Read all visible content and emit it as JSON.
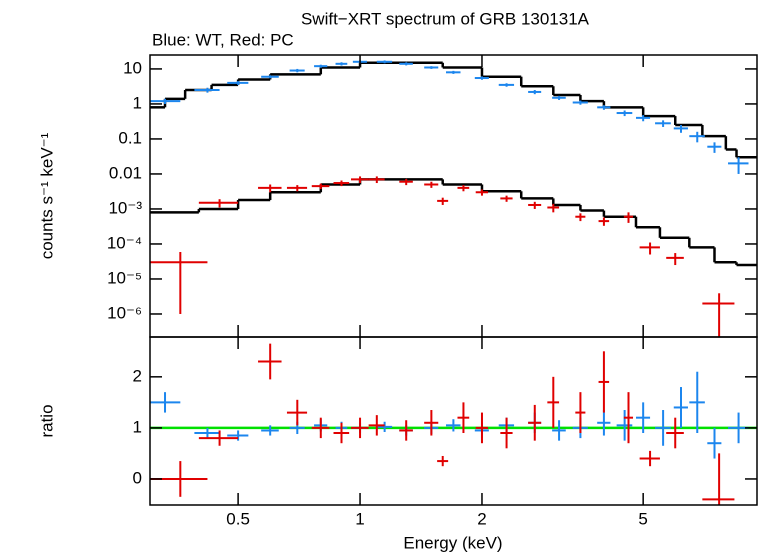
{
  "chart_data": [
    {
      "type": "scatter",
      "title": "Swift−XRT spectrum of GRB 130131A",
      "subtitle": "Blue: WT, Red: PC",
      "ylabel": "counts s⁻¹ keV⁻¹",
      "xscale": "log",
      "yscale": "log",
      "xlim": [
        0.303,
        9.55
      ],
      "ylim": [
        2.2e-07,
        25
      ],
      "yticks": [
        {
          "value": 10,
          "label": "10"
        },
        {
          "value": 1,
          "label": "1"
        },
        {
          "value": 0.1,
          "label": "0.1"
        },
        {
          "value": 0.01,
          "label": "0.01"
        },
        {
          "value": 0.001,
          "label": "10⁻³"
        },
        {
          "value": 0.0001,
          "label": "10⁻⁴"
        },
        {
          "value": 1e-05,
          "label": "10⁻⁵"
        },
        {
          "value": 1e-06,
          "label": "10⁻⁶"
        }
      ],
      "series": [
        {
          "name": "WT",
          "color": "#1c86ee",
          "x": [
            0.33,
            0.42,
            0.5,
            0.6,
            0.7,
            0.8,
            0.9,
            1.0,
            1.15,
            1.3,
            1.5,
            1.7,
            2.0,
            2.3,
            2.7,
            3.1,
            3.5,
            4.0,
            4.5,
            5.0,
            5.6,
            6.2,
            6.8,
            7.5,
            8.6
          ],
          "xerr": [
            0.03,
            0.03,
            0.03,
            0.03,
            0.03,
            0.03,
            0.03,
            0.04,
            0.05,
            0.05,
            0.06,
            0.07,
            0.08,
            0.1,
            0.1,
            0.12,
            0.15,
            0.15,
            0.2,
            0.2,
            0.25,
            0.25,
            0.3,
            0.3,
            0.5
          ],
          "values": [
            1.2,
            2.5,
            4,
            6,
            9,
            12,
            14,
            16,
            16,
            14,
            11,
            8,
            5.5,
            3.5,
            2.2,
            1.5,
            1.1,
            0.8,
            0.55,
            0.4,
            0.28,
            0.2,
            0.12,
            0.06,
            0.02
          ],
          "yerr": [
            0.2,
            0.4,
            0.5,
            0.6,
            1,
            1.2,
            1.5,
            1.5,
            1.5,
            1.4,
            1,
            0.8,
            0.6,
            0.4,
            0.3,
            0.2,
            0.15,
            0.12,
            0.1,
            0.08,
            0.06,
            0.05,
            0.04,
            0.02,
            0.01
          ]
        },
        {
          "name": "PC",
          "color": "#e00000",
          "x": [
            0.36,
            0.45,
            0.6,
            0.7,
            0.8,
            0.9,
            1.0,
            1.1,
            1.3,
            1.5,
            1.6,
            1.8,
            2.0,
            2.3,
            2.7,
            3.0,
            3.5,
            4.0,
            4.6,
            5.2,
            6.0,
            7.7
          ],
          "xerr": [
            0.06,
            0.05,
            0.04,
            0.04,
            0.04,
            0.04,
            0.05,
            0.05,
            0.05,
            0.06,
            0.05,
            0.06,
            0.07,
            0.08,
            0.1,
            0.1,
            0.1,
            0.12,
            0.12,
            0.3,
            0.3,
            0.7
          ],
          "values": [
            3e-05,
            0.0015,
            0.004,
            0.004,
            0.0045,
            0.0055,
            0.007,
            0.007,
            0.006,
            0.005,
            0.0017,
            0.004,
            0.003,
            0.002,
            0.0013,
            0.0011,
            0.0006,
            0.00045,
            0.0006,
            8e-05,
            4e-05,
            2e-06
          ],
          "yerr": [
            2.9e-05,
            0.0004,
            0.001,
            0.0008,
            0.0008,
            0.001,
            0.0015,
            0.0015,
            0.0012,
            0.001,
            0.0004,
            0.0008,
            0.0006,
            0.0004,
            0.0003,
            0.0003,
            0.00015,
            0.00012,
            0.0002,
            3e-05,
            1.5e-05,
            1.9e-06
          ]
        }
      ],
      "models": [
        {
          "color": "#000000",
          "x": [
            0.303,
            0.33,
            0.37,
            0.43,
            0.5,
            0.6,
            0.8,
            1.0,
            1.3,
            1.6,
            2,
            2.5,
            3,
            3.5,
            4,
            5,
            6,
            7,
            8,
            8.5,
            9.1
          ],
          "values": [
            0.8,
            1.4,
            2.5,
            3.5,
            5,
            7,
            11,
            15,
            15,
            11,
            6,
            3.2,
            1.8,
            1.2,
            0.8,
            0.45,
            0.25,
            0.12,
            0.05,
            0.03,
            0.03
          ]
        },
        {
          "color": "#000000",
          "x": [
            0.303,
            0.4,
            0.5,
            0.6,
            0.8,
            1.0,
            1.3,
            1.6,
            2,
            2.5,
            3,
            3.5,
            4,
            4.8,
            5.5,
            6.5,
            7.5,
            8.5
          ],
          "values": [
            0.0008,
            0.001,
            0.0018,
            0.003,
            0.005,
            0.007,
            0.007,
            0.005,
            0.0032,
            0.002,
            0.0013,
            0.0009,
            0.0006,
            0.0003,
            0.00015,
            8e-05,
            3e-05,
            2.5e-05
          ]
        }
      ]
    },
    {
      "type": "scatter",
      "ylabel": "ratio",
      "xlabel": "Energy (keV)",
      "xscale": "log",
      "xlim": [
        0.303,
        9.55
      ],
      "ylim": [
        -0.51,
        2.78
      ],
      "xticks": [
        0.5,
        1,
        2,
        5
      ],
      "yticks": [
        0,
        1,
        2
      ],
      "reference_line": {
        "value": 1,
        "color": "#00e000"
      },
      "series": [
        {
          "name": "WT",
          "color": "#1c86ee",
          "x": [
            0.33,
            0.42,
            0.5,
            0.6,
            0.7,
            0.8,
            0.9,
            1.0,
            1.15,
            1.3,
            1.5,
            1.7,
            2.0,
            2.3,
            2.7,
            3.1,
            3.5,
            4.0,
            4.5,
            5.0,
            5.6,
            6.2,
            6.8,
            7.5,
            8.6
          ],
          "xerr": [
            0.03,
            0.03,
            0.03,
            0.03,
            0.03,
            0.03,
            0.03,
            0.04,
            0.05,
            0.05,
            0.06,
            0.07,
            0.08,
            0.1,
            0.1,
            0.12,
            0.15,
            0.15,
            0.2,
            0.2,
            0.25,
            0.25,
            0.3,
            0.3,
            0.5
          ],
          "values": [
            1.5,
            0.9,
            0.85,
            0.95,
            1.0,
            1.05,
            1.0,
            1.0,
            1.02,
            0.95,
            1.0,
            1.05,
            0.95,
            1.05,
            1.1,
            0.95,
            1.0,
            1.1,
            1.05,
            1.2,
            1.0,
            1.4,
            1.5,
            0.7,
            1.0
          ],
          "yerr": [
            0.2,
            0.1,
            0.1,
            0.1,
            0.12,
            0.12,
            0.12,
            0.1,
            0.1,
            0.1,
            0.12,
            0.12,
            0.15,
            0.15,
            0.2,
            0.2,
            0.2,
            0.25,
            0.3,
            0.3,
            0.35,
            0.4,
            0.6,
            0.3,
            0.3
          ]
        },
        {
          "name": "PC",
          "color": "#e00000",
          "x": [
            0.36,
            0.45,
            0.6,
            0.7,
            0.8,
            0.9,
            1.0,
            1.1,
            1.3,
            1.5,
            1.6,
            1.8,
            2.0,
            2.3,
            2.7,
            3.0,
            3.5,
            4.0,
            4.6,
            5.2,
            6.0,
            7.7
          ],
          "xerr": [
            0.06,
            0.05,
            0.04,
            0.04,
            0.04,
            0.04,
            0.05,
            0.05,
            0.05,
            0.06,
            0.05,
            0.06,
            0.07,
            0.08,
            0.1,
            0.1,
            0.1,
            0.12,
            0.12,
            0.3,
            0.3,
            0.7
          ],
          "values": [
            0,
            0.8,
            2.3,
            1.3,
            1.0,
            0.9,
            1.0,
            1.05,
            0.95,
            1.1,
            0.35,
            1.2,
            1.0,
            0.9,
            1.1,
            1.5,
            1.3,
            1.9,
            1.2,
            0.4,
            0.9,
            -0.4
          ],
          "yerr": [
            0.35,
            0.15,
            0.35,
            0.25,
            0.2,
            0.2,
            0.2,
            0.2,
            0.2,
            0.25,
            0.1,
            0.3,
            0.3,
            0.3,
            0.35,
            0.5,
            0.4,
            0.6,
            0.5,
            0.15,
            0.3,
            0.9
          ]
        }
      ]
    }
  ]
}
